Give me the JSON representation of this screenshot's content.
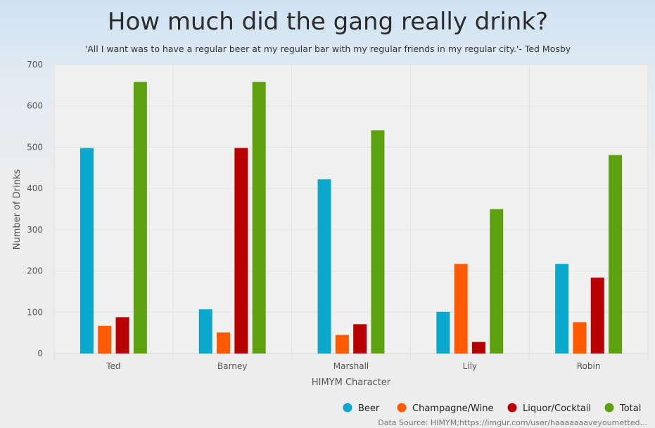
{
  "chart_data": {
    "type": "bar",
    "title": "How much did the gang really drink?",
    "subtitle": "'All I want was to have a regular beer at my regular bar with my regular friends in my regular city.'- Ted Mosby",
    "xlabel": "HIMYM Character",
    "ylabel": "Number of Drinks",
    "categories": [
      "Ted",
      "Barney",
      "Marshall",
      "Lily",
      "Robin"
    ],
    "ylim": [
      0,
      700
    ],
    "yticks": [
      0,
      100,
      200,
      300,
      400,
      500,
      600,
      700
    ],
    "grid": true,
    "legend_position": "bottom-right",
    "series": [
      {
        "name": "Beer",
        "color": "#0aa8cc",
        "values": [
          498,
          107,
          422,
          101,
          217
        ]
      },
      {
        "name": "Champagne/Wine",
        "color": "#ff5a00",
        "values": [
          67,
          51,
          45,
          217,
          76
        ]
      },
      {
        "name": "Liquor/Cocktail",
        "color": "#b80000",
        "values": [
          88,
          498,
          71,
          28,
          184
        ]
      },
      {
        "name": "Total",
        "color": "#5ea10f",
        "values": [
          658,
          658,
          541,
          350,
          481
        ]
      }
    ],
    "source": "Data Source: HIMYM;https://imgur.com/user/haaaaaaaveyoumetted..."
  }
}
